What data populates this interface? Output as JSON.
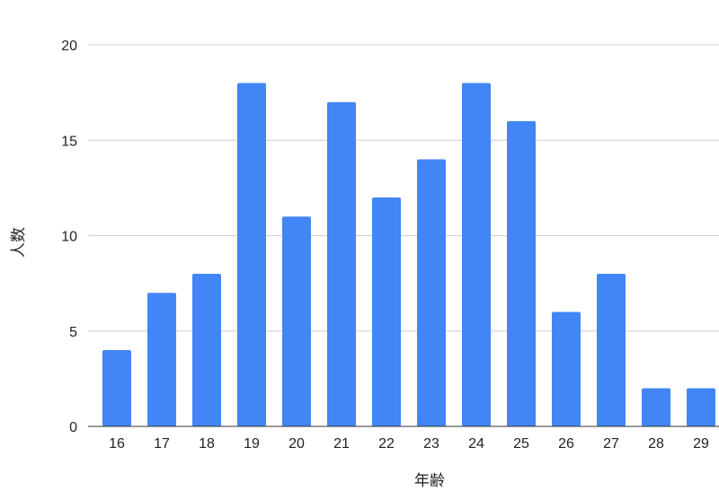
{
  "chart_data": {
    "type": "bar",
    "title": "",
    "xlabel": "年齢",
    "ylabel": "人数",
    "categories": [
      "16",
      "17",
      "18",
      "19",
      "20",
      "21",
      "22",
      "23",
      "24",
      "25",
      "26",
      "27",
      "28",
      "29"
    ],
    "values": [
      4,
      7,
      8,
      18,
      11,
      17,
      12,
      14,
      18,
      16,
      6,
      8,
      2,
      2
    ],
    "ylim": [
      0,
      20
    ],
    "yticks": [
      0,
      5,
      10,
      15,
      20
    ],
    "grid": true,
    "legend": "none",
    "bar_color": "#4285F4"
  }
}
